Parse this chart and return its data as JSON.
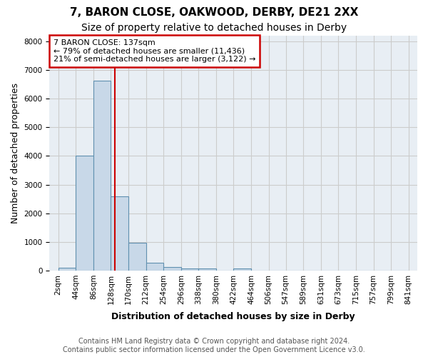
{
  "title": "7, BARON CLOSE, OAKWOOD, DERBY, DE21 2XX",
  "subtitle": "Size of property relative to detached houses in Derby",
  "xlabel": "Distribution of detached houses by size in Derby",
  "ylabel": "Number of detached properties",
  "footer": "Contains HM Land Registry data © Crown copyright and database right 2024.\nContains public sector information licensed under the Open Government Licence v3.0.",
  "bin_labels": [
    "2sqm",
    "44sqm",
    "86sqm",
    "128sqm",
    "170sqm",
    "212sqm",
    "254sqm",
    "296sqm",
    "338sqm",
    "380sqm",
    "422sqm",
    "464sqm",
    "506sqm",
    "547sqm",
    "589sqm",
    "631sqm",
    "673sqm",
    "715sqm",
    "757sqm",
    "799sqm",
    "841sqm"
  ],
  "bin_edges": [
    2,
    44,
    86,
    128,
    170,
    212,
    254,
    296,
    338,
    380,
    422,
    464,
    506,
    547,
    589,
    631,
    673,
    715,
    757,
    799,
    841
  ],
  "bar_heights": [
    100,
    4000,
    6620,
    2600,
    960,
    270,
    120,
    70,
    60,
    0,
    60,
    0,
    0,
    0,
    0,
    0,
    0,
    0,
    0,
    0
  ],
  "bar_color": "#c8d8e8",
  "bar_edge_color": "#6090b0",
  "bar_linewidth": 0.8,
  "vline_x": 137,
  "vline_color": "#cc0000",
  "vline_linewidth": 1.5,
  "annotation_text": "7 BARON CLOSE: 137sqm\n← 79% of detached houses are smaller (11,436)\n21% of semi-detached houses are larger (3,122) →",
  "annotation_box_color": "white",
  "annotation_border_color": "#cc0000",
  "ylim": [
    0,
    8200
  ],
  "yticks": [
    0,
    1000,
    2000,
    3000,
    4000,
    5000,
    6000,
    7000,
    8000
  ],
  "grid_color": "#cccccc",
  "bg_color": "#e8eef4",
  "title_fontsize": 11,
  "subtitle_fontsize": 10,
  "label_fontsize": 9,
  "tick_fontsize": 7.5,
  "footer_fontsize": 7
}
